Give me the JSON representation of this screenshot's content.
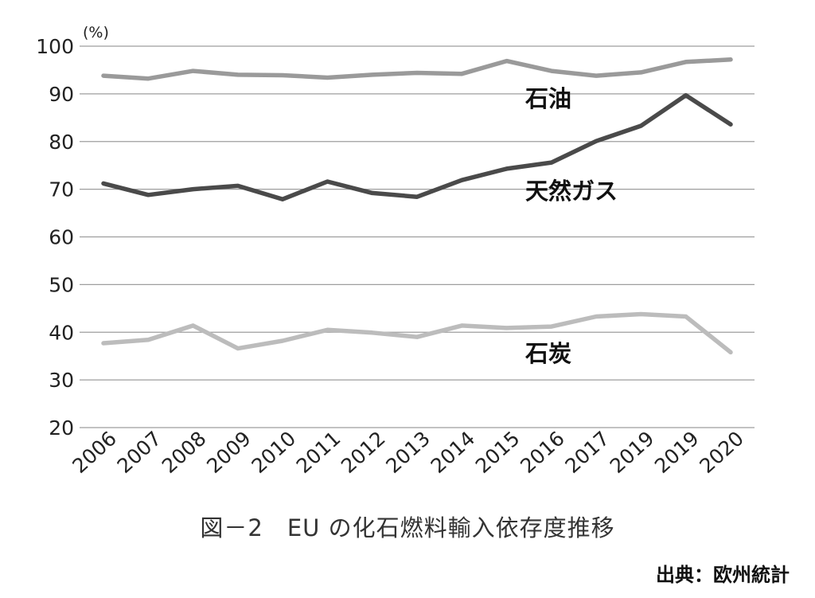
{
  "chart_data": {
    "type": "line",
    "y_unit": "(%)",
    "ylim": [
      20,
      100
    ],
    "yticks": [
      20,
      30,
      40,
      50,
      60,
      70,
      80,
      90,
      100
    ],
    "grid": true,
    "categories": [
      "2006",
      "2007",
      "2008",
      "2009",
      "2010",
      "2011",
      "2012",
      "2013",
      "2014",
      "2015",
      "2016",
      "2017",
      "2019",
      "2019",
      "2020"
    ],
    "series": [
      {
        "name": "石油",
        "color": "#9a9a9a",
        "values": [
          93.8,
          93.2,
          94.8,
          94.0,
          93.9,
          93.4,
          94.0,
          94.4,
          94.2,
          96.9,
          94.8,
          93.8,
          94.5,
          96.7,
          97.2
        ]
      },
      {
        "name": "天然ガス",
        "color": "#4a4a4a",
        "values": [
          71.2,
          68.8,
          70.0,
          70.7,
          67.9,
          71.6,
          69.2,
          68.4,
          71.9,
          74.3,
          75.6,
          80.1,
          83.3,
          89.7,
          83.6
        ]
      },
      {
        "name": "石炭",
        "color": "#bcbcbc",
        "values": [
          37.7,
          38.4,
          41.4,
          36.6,
          38.2,
          40.5,
          39.9,
          39.0,
          41.4,
          40.9,
          41.2,
          43.3,
          43.8,
          43.3,
          35.8
        ]
      }
    ]
  },
  "caption": "図－2　EU の化石燃料輸入依存度推移",
  "source": "出典：欧州統計"
}
